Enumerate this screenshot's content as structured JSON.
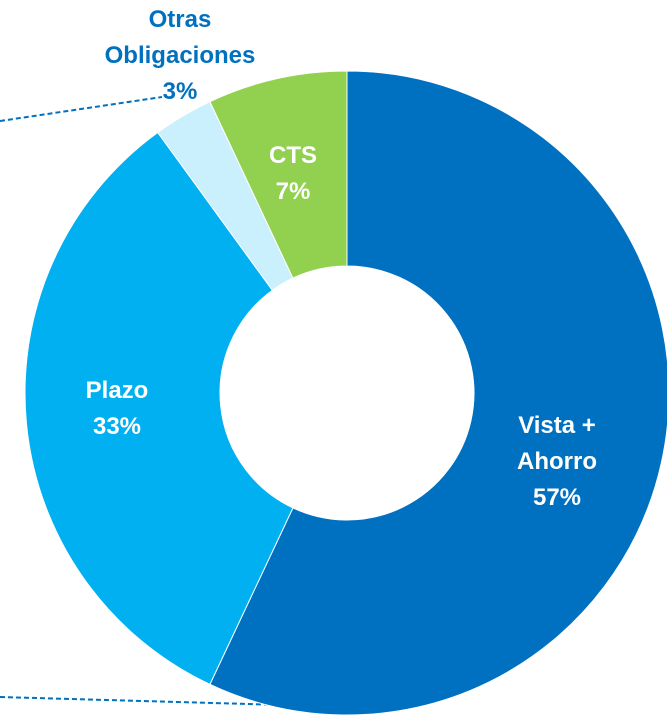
{
  "chart_data": {
    "type": "donut",
    "categories": [
      "Vista + Ahorro",
      "Plazo",
      "Otras Obligaciones",
      "CTS"
    ],
    "values": [
      57,
      33,
      3,
      7
    ],
    "value_labels": [
      "57%",
      "33%",
      "3%",
      "7%"
    ],
    "colors": [
      "#0070c0",
      "#00b0f0",
      "#c9f0fc",
      "#92d050"
    ]
  }
}
